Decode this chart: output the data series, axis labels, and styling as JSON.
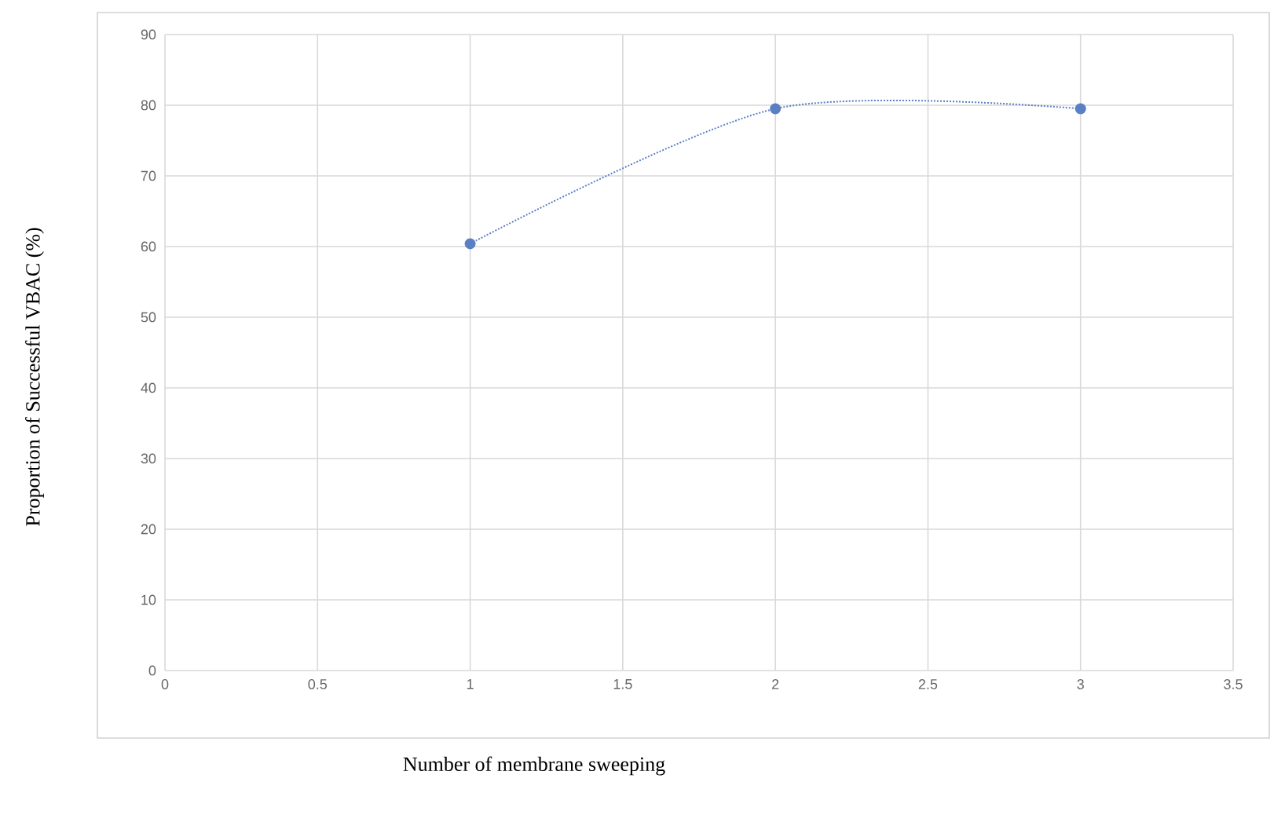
{
  "chart_data": {
    "type": "line",
    "xlabel": "Number of membrane  sweeping",
    "ylabel": "Proportion of Successful VBAC (%)",
    "x": [
      1,
      2,
      3
    ],
    "series": [
      {
        "color": "#5b7fc4",
        "values": [
          60.4,
          79.5,
          79.5
        ]
      }
    ],
    "xlim": [
      0,
      3.5
    ],
    "xticks": [
      0,
      0.5,
      1,
      1.5,
      2,
      2.5,
      3,
      3.5
    ],
    "ylim": [
      0,
      90
    ],
    "yticks": [
      0,
      10,
      20,
      30,
      40,
      50,
      60,
      70,
      80,
      90
    ],
    "grid": true,
    "marker": "circle",
    "line_style": "dotted"
  }
}
